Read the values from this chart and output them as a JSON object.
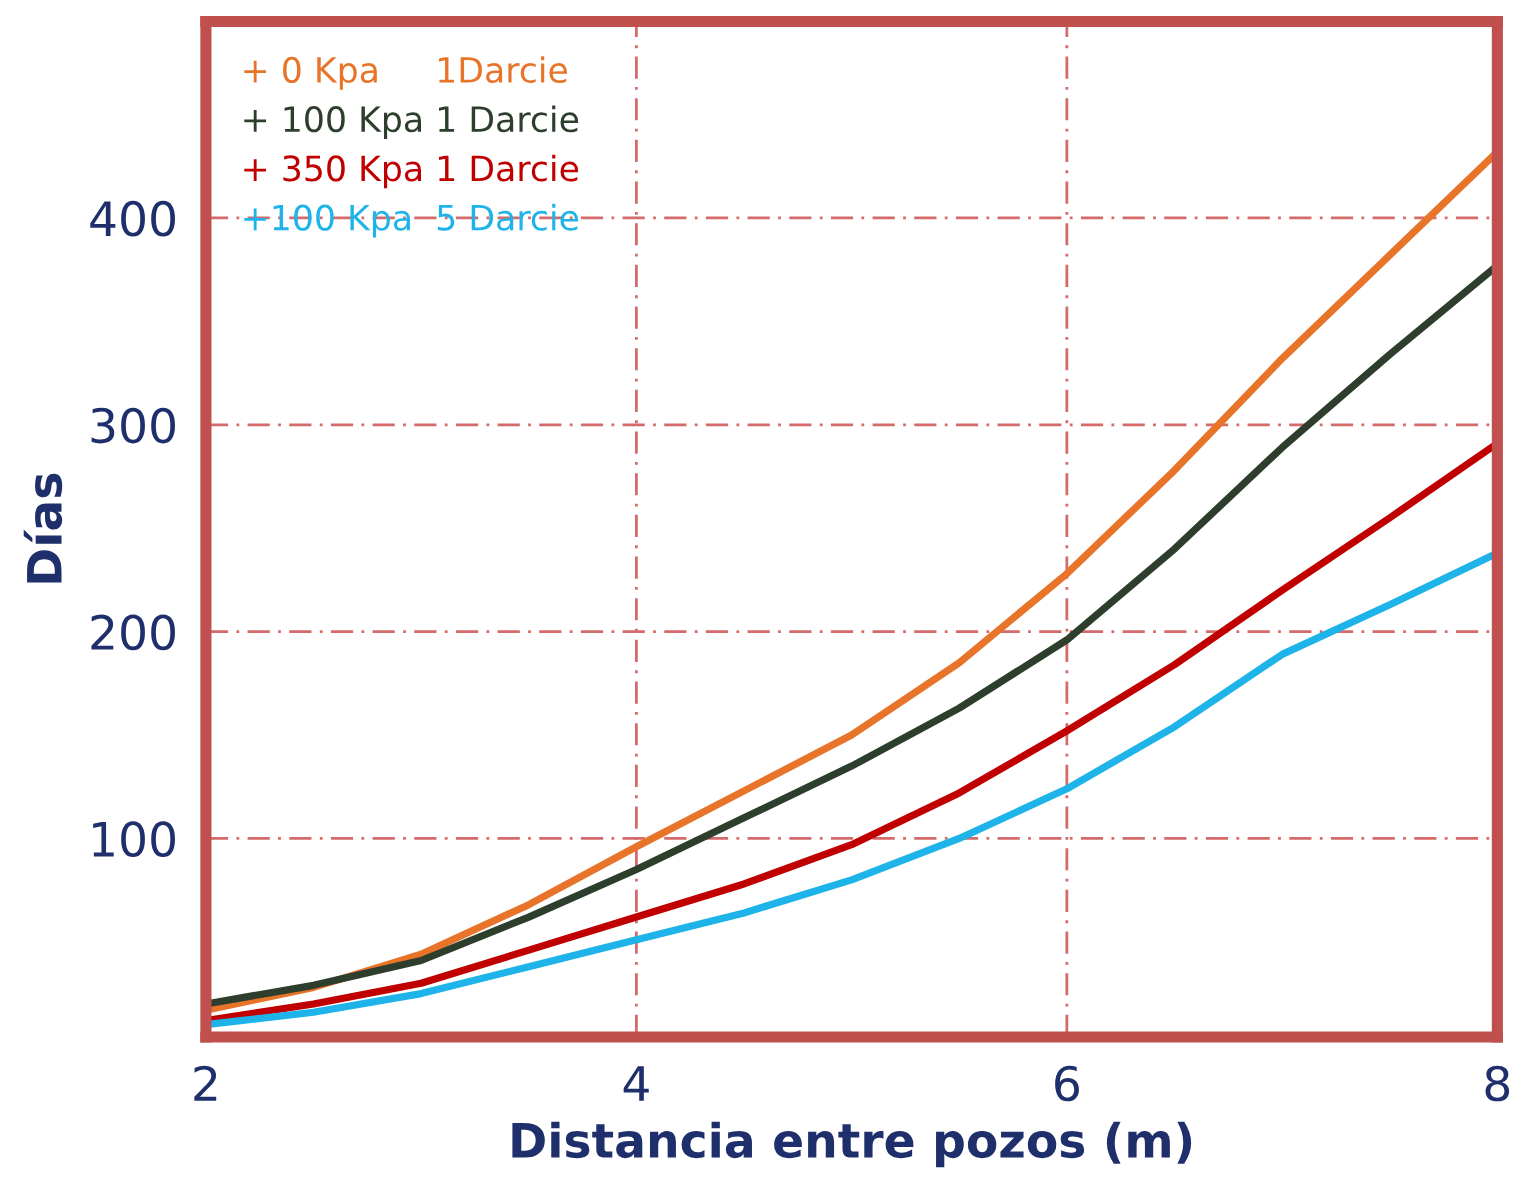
{
  "chart_data": {
    "type": "line",
    "xlabel": "Distancia entre pozos (m)",
    "ylabel": "Días",
    "xlim": [
      2,
      8
    ],
    "ylim": [
      4,
      495
    ],
    "xticks": [
      2,
      4,
      6,
      8
    ],
    "yticks": [
      100,
      200,
      300,
      400
    ],
    "grid": true,
    "legend": "top left",
    "marker": "none",
    "line_style": "solid",
    "x": [
      2,
      2.5,
      3,
      3.5,
      4,
      4.5,
      5,
      5.5,
      6,
      6.5,
      7,
      7.5,
      8
    ],
    "series": [
      {
        "name": "+ 0 Kpa     1Darcie",
        "color": "#e8742a",
        "values": [
          17,
          28,
          44,
          68,
          96,
          123,
          150,
          185,
          228,
          278,
          332,
          382,
          432
        ]
      },
      {
        "name": "+ 100 Kpa 1 Darcie",
        "color": "#2d3e2c",
        "values": [
          20,
          29,
          41,
          62,
          85,
          110,
          135,
          163,
          196,
          240,
          289,
          334,
          377
        ]
      },
      {
        "name": "+ 350 Kpa 1 Darcie",
        "color": "#c00000",
        "values": [
          12,
          20,
          30,
          46,
          62,
          78,
          97,
          122,
          152,
          184,
          220,
          255,
          291
        ]
      },
      {
        "name": "+100 Kpa  5 Darcie",
        "color": "#1eb4ea",
        "values": [
          10,
          16,
          25,
          38,
          51,
          64,
          80,
          100,
          124,
          154,
          189,
          213,
          238
        ]
      }
    ]
  }
}
